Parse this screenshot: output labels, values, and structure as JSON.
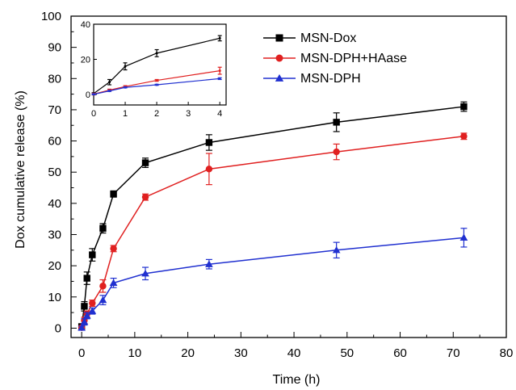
{
  "chart_data": [
    {
      "type": "line",
      "xlabel": "Time (h)",
      "ylabel": "Dox cumulative release (%)",
      "xlim": [
        -2,
        80
      ],
      "ylim": [
        -3,
        100
      ],
      "xticks": [
        0,
        10,
        20,
        30,
        40,
        50,
        60,
        70,
        80
      ],
      "yticks": [
        0,
        10,
        20,
        30,
        40,
        50,
        60,
        70,
        80,
        90,
        100
      ],
      "legend_position": "top-right",
      "grid": false,
      "series": [
        {
          "name": "MSN-Dox",
          "color": "#000000",
          "marker": "square",
          "x": [
            0,
            0.5,
            1,
            2,
            4,
            6,
            12,
            24,
            48,
            72
          ],
          "y": [
            0.5,
            7,
            16,
            23.5,
            32,
            43,
            53,
            59.5,
            66,
            71
          ],
          "err": [
            0.5,
            1.5,
            2.0,
            2.0,
            1.5,
            1.0,
            1.5,
            2.5,
            3.0,
            1.5
          ]
        },
        {
          "name": "MSN-DPH+HAase",
          "color": "#e02020",
          "marker": "circle",
          "x": [
            0,
            0.5,
            1,
            2,
            4,
            6,
            12,
            24,
            48,
            72
          ],
          "y": [
            0.2,
            2.5,
            4.5,
            8,
            13.5,
            25.5,
            42,
            51,
            56.5,
            61.5
          ],
          "err": [
            0.5,
            1.0,
            1.0,
            1.0,
            2.0,
            1.0,
            1.0,
            5.0,
            2.5,
            1.0
          ]
        },
        {
          "name": "MSN-DPH",
          "color": "#2030d0",
          "marker": "triangle",
          "x": [
            0,
            0.5,
            1,
            2,
            4,
            6,
            12,
            24,
            48,
            72
          ],
          "y": [
            0.1,
            2,
            4,
            5.5,
            9,
            14.5,
            17.5,
            20.5,
            25,
            29
          ],
          "err": [
            0.5,
            1.0,
            1.0,
            1.0,
            1.5,
            1.5,
            2.0,
            1.5,
            2.5,
            3.0
          ]
        }
      ]
    },
    {
      "type": "line",
      "role": "inset",
      "xlim": [
        0,
        4.2
      ],
      "ylim": [
        -6,
        40
      ],
      "xticks": [
        0,
        1,
        2,
        3,
        4
      ],
      "yticks": [
        0,
        20,
        40
      ],
      "series": [
        {
          "name": "MSN-Dox",
          "color": "#000000",
          "x": [
            0,
            0.5,
            1,
            2,
            4
          ],
          "y": [
            0.5,
            7,
            16,
            23.5,
            32
          ],
          "err": [
            0.5,
            1.5,
            2.0,
            2.0,
            1.5
          ]
        },
        {
          "name": "MSN-DPH+HAase",
          "color": "#e02020",
          "x": [
            0,
            0.5,
            1,
            2,
            4
          ],
          "y": [
            0.2,
            2.5,
            4.5,
            8,
            13.5
          ],
          "err": [
            0.5,
            0.5,
            0.5,
            0.5,
            2.0
          ]
        },
        {
          "name": "MSN-DPH",
          "color": "#2030d0",
          "x": [
            0,
            0.5,
            1,
            2,
            4
          ],
          "y": [
            0.1,
            2,
            4,
            5.5,
            9
          ],
          "err": [
            0.3,
            0.3,
            0.3,
            0.3,
            0.5
          ]
        }
      ]
    }
  ]
}
